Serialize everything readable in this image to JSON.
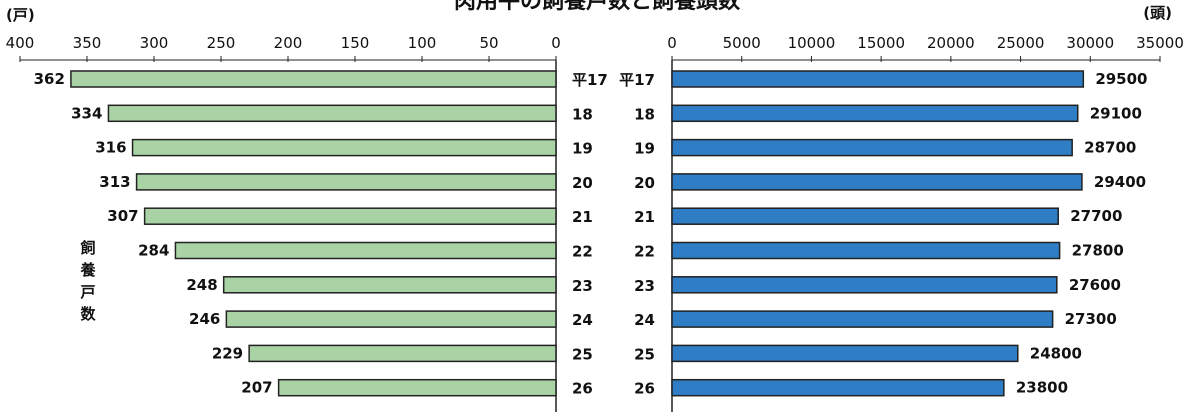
{
  "title": "肉用牛の飼養戸数と飼養頭数",
  "colors": {
    "left_bar": "#a9d3a5",
    "right_bar": "#2e7dc5",
    "axis": "#222222",
    "text": "#111111"
  },
  "chart_data": [
    {
      "type": "bar",
      "orientation": "horizontal",
      "direction": "right-to-left",
      "unit": "(戸)",
      "ylabel": "飼養戸数",
      "xlim": [
        0,
        400
      ],
      "xticks": [
        400,
        350,
        300,
        250,
        200,
        150,
        100,
        50,
        0
      ],
      "categories": [
        "平17",
        "18",
        "19",
        "20",
        "21",
        "22",
        "23",
        "24",
        "25",
        "26"
      ],
      "values": [
        362,
        334,
        316,
        313,
        307,
        284,
        248,
        246,
        229,
        207
      ]
    },
    {
      "type": "bar",
      "orientation": "horizontal",
      "direction": "left-to-right",
      "unit": "(頭)",
      "xlim": [
        0,
        35000
      ],
      "xticks": [
        0,
        5000,
        10000,
        15000,
        20000,
        25000,
        30000,
        35000
      ],
      "categories": [
        "平17",
        "18",
        "19",
        "20",
        "21",
        "22",
        "23",
        "24",
        "25",
        "26"
      ],
      "values": [
        29500,
        29100,
        28700,
        29400,
        27700,
        27800,
        27600,
        27300,
        24800,
        23800
      ]
    }
  ]
}
